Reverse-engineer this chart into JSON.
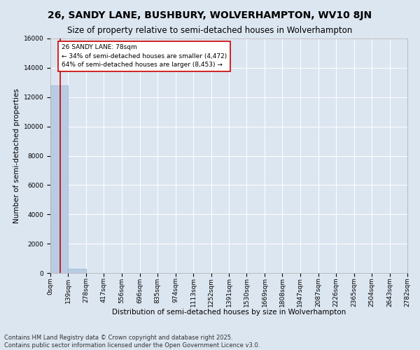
{
  "title": "26, SANDY LANE, BUSHBURY, WOLVERHAMPTON, WV10 8JN",
  "subtitle": "Size of property relative to semi-detached houses in Wolverhampton",
  "xlabel": "Distribution of semi-detached houses by size in Wolverhampton",
  "ylabel": "Number of semi-detached properties",
  "footnote1": "Contains HM Land Registry data © Crown copyright and database right 2025.",
  "footnote2": "Contains public sector information licensed under the Open Government Licence v3.0.",
  "bin_edges": [
    0,
    139,
    278,
    417,
    556,
    696,
    835,
    974,
    1113,
    1252,
    1391,
    1530,
    1669,
    1808,
    1947,
    2087,
    2226,
    2365,
    2504,
    2643,
    2782
  ],
  "bin_labels": [
    "0sqm",
    "139sqm",
    "278sqm",
    "417sqm",
    "556sqm",
    "696sqm",
    "835sqm",
    "974sqm",
    "1113sqm",
    "1252sqm",
    "1391sqm",
    "1530sqm",
    "1669sqm",
    "1808sqm",
    "1947sqm",
    "2087sqm",
    "2226sqm",
    "2365sqm",
    "2504sqm",
    "2643sqm",
    "2782sqm"
  ],
  "bar_heights": [
    12800,
    310,
    5,
    2,
    1,
    0,
    0,
    0,
    0,
    0,
    0,
    0,
    0,
    0,
    0,
    0,
    0,
    0,
    0,
    0
  ],
  "bar_color": "#b8cce4",
  "bar_edgecolor": "#9ab3cc",
  "bg_color": "#dce6f1",
  "grid_color": "#ffffff",
  "property_line_x": 78,
  "property_line_color": "#cc0000",
  "annotation_title": "26 SANDY LANE: 78sqm",
  "annotation_line1": "← 34% of semi-detached houses are smaller (4,472)",
  "annotation_line2": "64% of semi-detached houses are larger (8,453) →",
  "annotation_box_facecolor": "#ffffff",
  "annotation_box_edgecolor": "#cc0000",
  "ylim": [
    0,
    16000
  ],
  "yticks": [
    0,
    2000,
    4000,
    6000,
    8000,
    10000,
    12000,
    14000,
    16000
  ],
  "title_fontsize": 10,
  "subtitle_fontsize": 8.5,
  "ylabel_fontsize": 7.5,
  "xlabel_fontsize": 7.5,
  "tick_fontsize": 6.5,
  "annotation_fontsize": 6.5,
  "footnote_fontsize": 6
}
